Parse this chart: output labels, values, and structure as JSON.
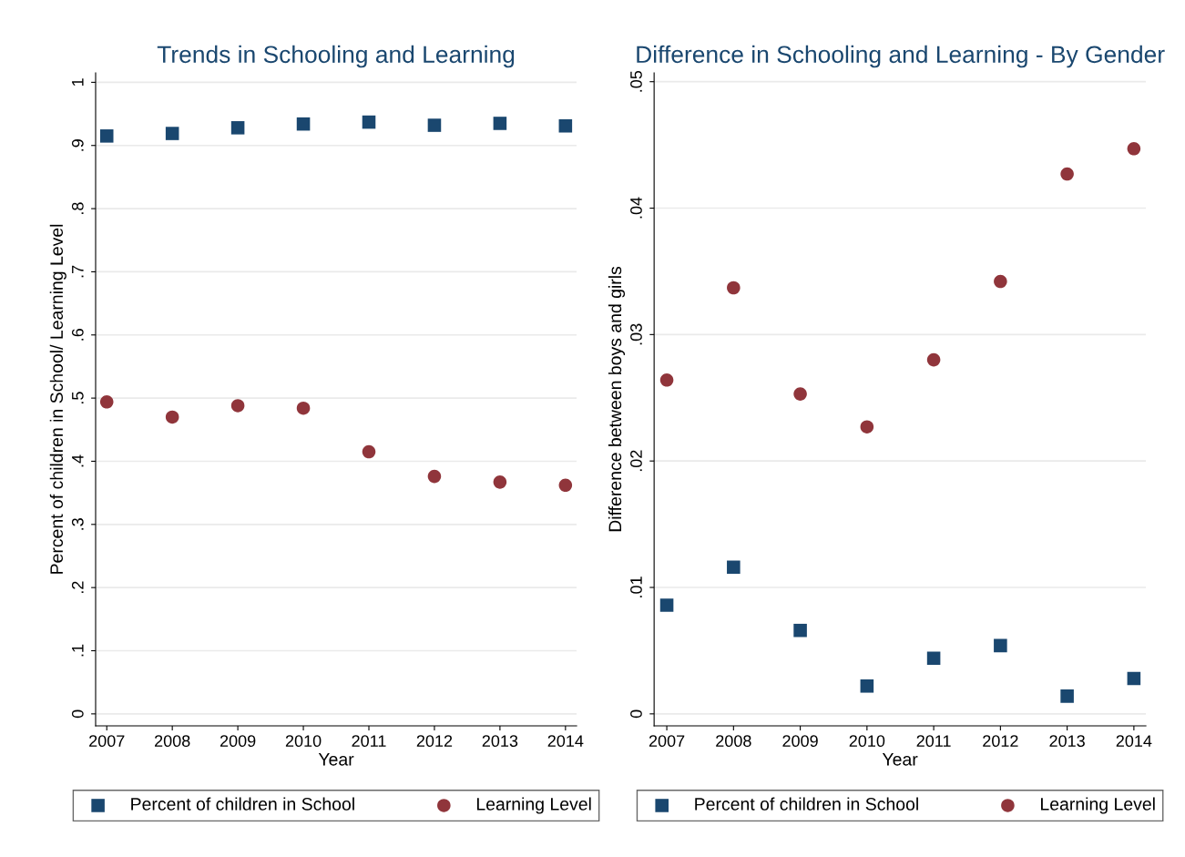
{
  "chart_data": [
    {
      "type": "scatter",
      "title": "Trends in Schooling and Learning",
      "xlabel": "Year",
      "ylabel": "Percent of children in School/ Learning Level",
      "x": [
        2007,
        2008,
        2009,
        2010,
        2011,
        2012,
        2013,
        2014
      ],
      "series": [
        {
          "name": "Percent of children in School",
          "color": "#1a476f",
          "marker": "square",
          "values": [
            0.915,
            0.919,
            0.928,
            0.934,
            0.937,
            0.932,
            0.935,
            0.931
          ]
        },
        {
          "name": "Learning Level",
          "color": "#90353b",
          "marker": "circle",
          "values": [
            0.494,
            0.47,
            0.488,
            0.484,
            0.415,
            0.376,
            0.367,
            0.362
          ]
        }
      ],
      "xlim": [
        2006.83,
        2014.17
      ],
      "xticks": [
        2007,
        2008,
        2009,
        2010,
        2011,
        2012,
        2013,
        2014
      ],
      "ylim": [
        -0.019,
        1.015
      ],
      "yticks": [
        {
          "value": 0,
          "label": "0"
        },
        {
          "value": 0.1,
          "label": ".1"
        },
        {
          "value": 0.2,
          "label": ".2"
        },
        {
          "value": 0.3,
          "label": ".3"
        },
        {
          "value": 0.4,
          "label": ".4"
        },
        {
          "value": 0.5,
          "label": ".5"
        },
        {
          "value": 0.6,
          "label": ".6"
        },
        {
          "value": 0.7,
          "label": ".7"
        },
        {
          "value": 0.8,
          "label": ".8"
        },
        {
          "value": 0.9,
          "label": ".9"
        },
        {
          "value": 1,
          "label": "1"
        }
      ],
      "grid": "y",
      "legend": "bottom"
    },
    {
      "type": "scatter",
      "title": "Difference in Schooling and Learning - By Gender",
      "xlabel": "Year",
      "ylabel": "Difference between boys and girls",
      "x": [
        2007,
        2008,
        2009,
        2010,
        2011,
        2012,
        2013,
        2014
      ],
      "series": [
        {
          "name": "Percent of children in School",
          "color": "#1a476f",
          "marker": "square",
          "values": [
            0.0086,
            0.0116,
            0.0066,
            0.0022,
            0.0044,
            0.0054,
            0.0014,
            0.0028
          ]
        },
        {
          "name": "Learning Level",
          "color": "#90353b",
          "marker": "circle",
          "values": [
            0.0264,
            0.0337,
            0.0253,
            0.0227,
            0.028,
            0.0342,
            0.0427,
            0.0447
          ]
        }
      ],
      "xlim": [
        2006.81,
        2014.18
      ],
      "xticks": [
        2007,
        2008,
        2009,
        2010,
        2011,
        2012,
        2013,
        2014
      ],
      "ylim": [
        -0.00095,
        0.0507
      ],
      "yticks": [
        {
          "value": 0,
          "label": "0"
        },
        {
          "value": 0.01,
          "label": ".01"
        },
        {
          "value": 0.02,
          "label": ".02"
        },
        {
          "value": 0.03,
          "label": ".03"
        },
        {
          "value": 0.04,
          "label": ".04"
        },
        {
          "value": 0.05,
          "label": ".05"
        }
      ],
      "grid": "y",
      "legend": "bottom"
    }
  ]
}
